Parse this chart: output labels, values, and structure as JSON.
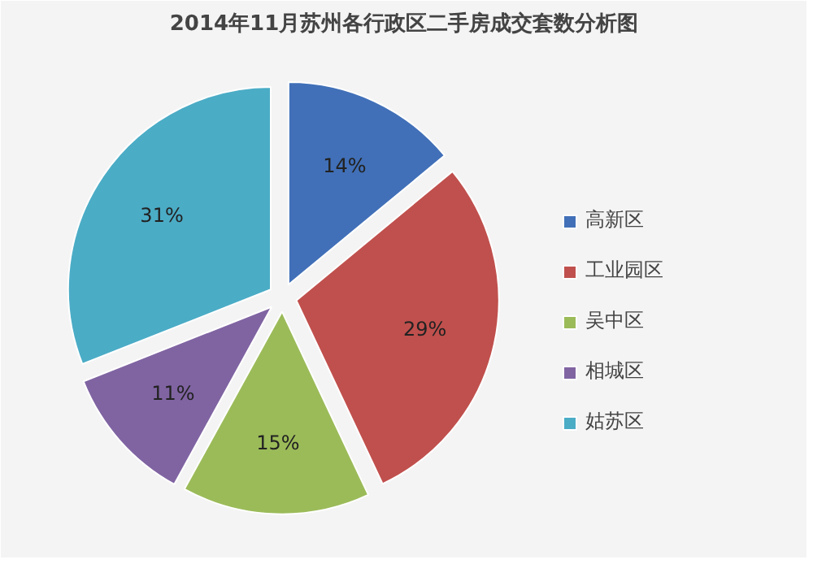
{
  "chart_data": {
    "type": "pie",
    "title": "2014年11月苏州各行政区二手房成交套数分析图",
    "categories": [
      "高新区",
      "工业园区",
      "吴中区",
      "相城区",
      "姑苏区"
    ],
    "values": [
      14,
      29,
      15,
      11,
      31
    ],
    "value_labels": [
      "14%",
      "29%",
      "15%",
      "11%",
      "31%"
    ],
    "colors": [
      "#4170b8",
      "#c0504d",
      "#9bbb59",
      "#8064a2",
      "#4bacc6"
    ],
    "legend": "right"
  }
}
